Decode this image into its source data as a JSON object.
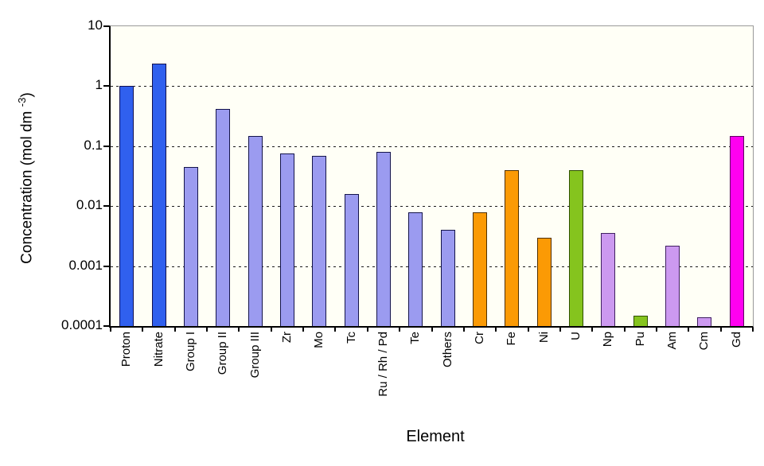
{
  "chart_data": {
    "type": "bar",
    "title": "",
    "xlabel": "Element",
    "ylabel": "Concentration (mol dm -3)",
    "ylabel_parts": [
      {
        "text": "Concentration (mol dm "
      },
      {
        "text": "-3",
        "superscript": true
      },
      {
        "text": ")"
      }
    ],
    "y_scale": "log",
    "ylim": [
      0.0001,
      10
    ],
    "y_ticks": [
      "10",
      "1",
      "0.1",
      "0.01",
      "0.001",
      "0.0001"
    ],
    "y_tick_values": [
      10,
      1,
      0.1,
      0.01,
      0.001,
      0.0001
    ],
    "gridlines": {
      "style": "dashed",
      "at": [
        1,
        0.1,
        0.01,
        0.001
      ]
    },
    "legend": "none",
    "categories": [
      "Proton",
      "Nitrate",
      "Group I",
      "Group II",
      "Group III",
      "Zr",
      "Mo",
      "Tc",
      "Ru / Rh / Pd",
      "Te",
      "Others",
      "Cr",
      "Fe",
      "Ni",
      "U",
      "Np",
      "Pu",
      "Am",
      "Cm",
      "Gd"
    ],
    "values": [
      1.0,
      2.4,
      0.045,
      0.42,
      0.15,
      0.076,
      0.068,
      0.016,
      0.08,
      0.0078,
      0.004,
      0.008,
      0.04,
      0.003,
      0.04,
      0.0036,
      0.00015,
      0.0022,
      0.00014,
      0.15
    ],
    "bar_fill_colors": [
      "#3060ee",
      "#3060ee",
      "#9b9bf0",
      "#9b9bf0",
      "#9b9bf0",
      "#9b9bf0",
      "#9b9bf0",
      "#9b9bf0",
      "#9b9bf0",
      "#9b9bf0",
      "#9b9bf0",
      "#fb9a05",
      "#fb9a05",
      "#fb9a05",
      "#85c41e",
      "#cc99f0",
      "#85c41e",
      "#cc99f0",
      "#cc99f0",
      "#ff00f0"
    ],
    "bar_border_colors": [
      "#101050",
      "#101050",
      "#14144a",
      "#14144a",
      "#14144a",
      "#14144a",
      "#14144a",
      "#14144a",
      "#14144a",
      "#14144a",
      "#14144a",
      "#503000",
      "#503000",
      "#503000",
      "#2f5000",
      "#402060",
      "#2f5000",
      "#402060",
      "#402060",
      "#600060"
    ]
  },
  "colors": {
    "strong_blue": "#3060ee",
    "periwinkle": "#9b9bf0",
    "orange": "#fb9a05",
    "lime_green": "#85c41e",
    "lavender": "#cc99f0",
    "magenta": "#ff00f0",
    "axis": "#000000",
    "plot_border_gray": "#999999",
    "plot_background": "#fffff6",
    "gridline": "#1a1a1a"
  }
}
